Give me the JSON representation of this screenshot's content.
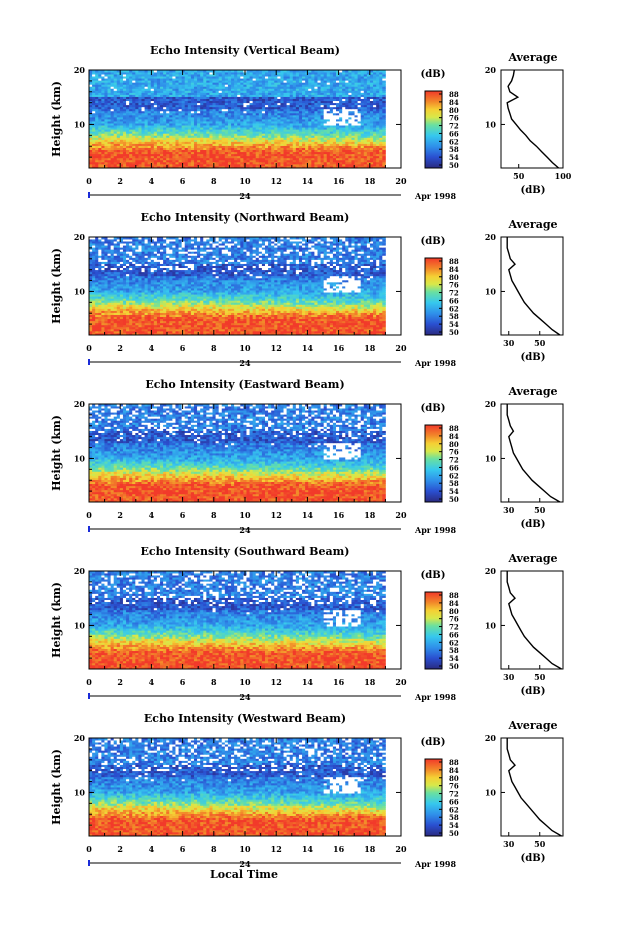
{
  "figure": {
    "xlabel": "Local Time",
    "date_label": "Apr 1998",
    "day_label": "24",
    "colorbar_unit": "(dB)",
    "colorbar_ticks": [
      "50",
      "54",
      "58",
      "62",
      "66",
      "72",
      "76",
      "80",
      "84",
      "88"
    ],
    "profile_title": "Average",
    "profile_xlabel": "(dB)"
  },
  "chart_data": [
    {
      "type": "heatmap",
      "title": "Echo Intensity (Vertical Beam)",
      "xlabel": "Local Time",
      "ylabel": "Height (km)",
      "x_range": [
        0,
        20
      ],
      "x_ticks": [
        0,
        2,
        4,
        6,
        8,
        10,
        12,
        14,
        16,
        18,
        20
      ],
      "data_end_hour": 19,
      "y_range": [
        2,
        20
      ],
      "y_ticks": [
        10,
        20
      ],
      "colorbar": {
        "label": "(dB)",
        "range": [
          50,
          88
        ],
        "ticks": [
          50,
          54,
          58,
          62,
          66,
          72,
          76,
          80,
          84,
          88
        ]
      },
      "profile": {
        "title": "Average",
        "xlabel": "(dB)",
        "x_ticks": [
          50,
          100
        ],
        "xlim": [
          30,
          100
        ],
        "heights": [
          2,
          3,
          4,
          5,
          6,
          7,
          8,
          9,
          10,
          11,
          12,
          13,
          14,
          15,
          16,
          17,
          18,
          19,
          20
        ],
        "values": [
          95,
          88,
          82,
          76,
          70,
          63,
          58,
          52,
          47,
          42,
          40,
          38,
          37,
          49,
          40,
          38,
          42,
          44,
          45
        ]
      }
    },
    {
      "type": "heatmap",
      "title": "Echo Intensity (Northward Beam)",
      "xlabel": "Local Time",
      "ylabel": "Height (km)",
      "x_range": [
        0,
        20
      ],
      "x_ticks": [
        0,
        2,
        4,
        6,
        8,
        10,
        12,
        14,
        16,
        18,
        20
      ],
      "data_end_hour": 19,
      "y_range": [
        2,
        20
      ],
      "y_ticks": [
        10,
        20
      ],
      "colorbar": {
        "label": "(dB)",
        "range": [
          50,
          88
        ],
        "ticks": [
          50,
          54,
          58,
          62,
          66,
          72,
          76,
          80,
          84,
          88
        ]
      },
      "profile": {
        "title": "Average",
        "xlabel": "(dB)",
        "x_ticks": [
          30,
          50
        ],
        "xlim": [
          25,
          65
        ],
        "heights": [
          2,
          3,
          4,
          5,
          6,
          7,
          8,
          9,
          10,
          11,
          12,
          13,
          14,
          15,
          16,
          17,
          18,
          19,
          20
        ],
        "values": [
          63,
          58,
          54,
          50,
          46,
          43,
          40,
          38,
          36,
          34,
          32,
          31,
          30,
          34,
          31,
          30,
          29,
          29,
          29
        ]
      }
    },
    {
      "type": "heatmap",
      "title": "Echo Intensity (Eastward Beam)",
      "xlabel": "Local Time",
      "ylabel": "Height (km)",
      "x_range": [
        0,
        20
      ],
      "x_ticks": [
        0,
        2,
        4,
        6,
        8,
        10,
        12,
        14,
        16,
        18,
        20
      ],
      "data_end_hour": 19,
      "y_range": [
        2,
        20
      ],
      "y_ticks": [
        10,
        20
      ],
      "colorbar": {
        "label": "(dB)",
        "range": [
          50,
          88
        ],
        "ticks": [
          50,
          54,
          58,
          62,
          66,
          72,
          76,
          80,
          84,
          88
        ]
      },
      "profile": {
        "title": "Average",
        "xlabel": "(dB)",
        "x_ticks": [
          30,
          50
        ],
        "xlim": [
          25,
          65
        ],
        "heights": [
          2,
          3,
          4,
          5,
          6,
          7,
          8,
          9,
          10,
          11,
          12,
          13,
          14,
          15,
          16,
          17,
          18,
          19,
          20
        ],
        "values": [
          63,
          57,
          53,
          49,
          45,
          42,
          39,
          37,
          35,
          33,
          32,
          31,
          30,
          33,
          31,
          30,
          29,
          29,
          29
        ]
      }
    },
    {
      "type": "heatmap",
      "title": "Echo Intensity (Southward Beam)",
      "xlabel": "Local Time",
      "ylabel": "Height (km)",
      "x_range": [
        0,
        20
      ],
      "x_ticks": [
        0,
        2,
        4,
        6,
        8,
        10,
        12,
        14,
        16,
        18,
        20
      ],
      "data_end_hour": 19,
      "y_range": [
        2,
        20
      ],
      "y_ticks": [
        10,
        20
      ],
      "colorbar": {
        "label": "(dB)",
        "range": [
          50,
          88
        ],
        "ticks": [
          50,
          54,
          58,
          62,
          66,
          72,
          76,
          80,
          84,
          88
        ]
      },
      "profile": {
        "title": "Average",
        "xlabel": "(dB)",
        "x_ticks": [
          30,
          50
        ],
        "xlim": [
          25,
          65
        ],
        "heights": [
          2,
          3,
          4,
          5,
          6,
          7,
          8,
          9,
          10,
          11,
          12,
          13,
          14,
          15,
          16,
          17,
          18,
          19,
          20
        ],
        "values": [
          64,
          58,
          54,
          50,
          46,
          43,
          40,
          38,
          36,
          34,
          32,
          31,
          30,
          34,
          31,
          30,
          29,
          29,
          29
        ]
      }
    },
    {
      "type": "heatmap",
      "title": "Echo Intensity (Westward Beam)",
      "xlabel": "Local Time",
      "ylabel": "Height (km)",
      "x_range": [
        0,
        20
      ],
      "x_ticks": [
        0,
        2,
        4,
        6,
        8,
        10,
        12,
        14,
        16,
        18,
        20
      ],
      "data_end_hour": 19,
      "y_range": [
        2,
        20
      ],
      "y_ticks": [
        10,
        20
      ],
      "colorbar": {
        "label": "(dB)",
        "range": [
          50,
          88
        ],
        "ticks": [
          50,
          54,
          58,
          62,
          66,
          72,
          76,
          80,
          84,
          88
        ]
      },
      "profile": {
        "title": "Average",
        "xlabel": "(dB)",
        "x_ticks": [
          30,
          50
        ],
        "xlim": [
          25,
          65
        ],
        "heights": [
          2,
          3,
          4,
          5,
          6,
          7,
          8,
          9,
          10,
          11,
          12,
          13,
          14,
          15,
          16,
          17,
          18,
          19,
          20
        ],
        "values": [
          64,
          58,
          54,
          50,
          47,
          44,
          41,
          38,
          36,
          34,
          32,
          31,
          30,
          34,
          31,
          30,
          29,
          29,
          29
        ]
      }
    }
  ]
}
